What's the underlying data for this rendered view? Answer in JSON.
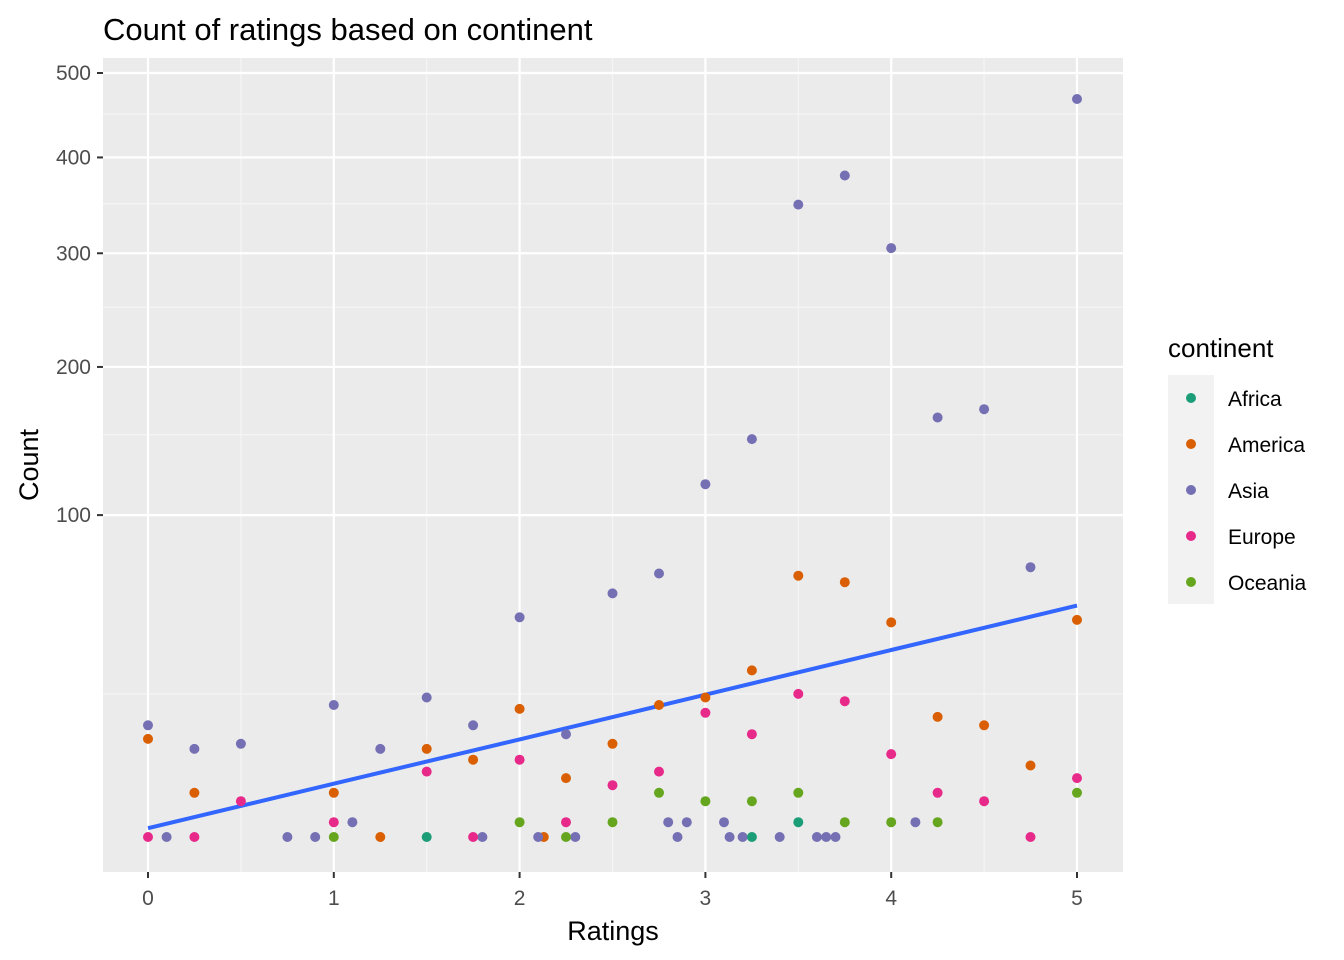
{
  "chart_data": {
    "type": "scatter",
    "title": "Count of ratings based on continent",
    "xlabel": "Ratings",
    "ylabel": "Count",
    "xlim": [
      -0.25,
      5.25
    ],
    "ylim": [
      0,
      530
    ],
    "y_scale": "sqrt",
    "x_ticks": [
      0,
      1,
      2,
      3,
      4,
      5
    ],
    "y_ticks": [
      100,
      200,
      300,
      400,
      500
    ],
    "y_minor_ticks": [
      25,
      150,
      250,
      350,
      450
    ],
    "grid": true,
    "panel_background": "#ebebeb",
    "legend": {
      "title": "continent",
      "position": "right"
    },
    "series": [
      {
        "name": "Africa",
        "color": "#1b9e77",
        "points": [
          [
            1.5,
            1
          ],
          [
            3.25,
            1
          ],
          [
            3.5,
            2
          ]
        ]
      },
      {
        "name": "America",
        "color": "#d95f02",
        "points": [
          [
            0,
            14
          ],
          [
            0.25,
            5
          ],
          [
            1,
            5
          ],
          [
            1.25,
            1
          ],
          [
            1.5,
            12
          ],
          [
            1.75,
            10
          ],
          [
            2,
            21
          ],
          [
            2.13,
            1
          ],
          [
            2.25,
            7
          ],
          [
            2.5,
            13
          ],
          [
            2.75,
            22
          ],
          [
            3,
            24
          ],
          [
            3.25,
            32
          ],
          [
            3.5,
            69
          ],
          [
            3.75,
            66
          ],
          [
            4,
            49
          ],
          [
            4.25,
            19
          ],
          [
            4.5,
            17
          ],
          [
            4.75,
            9
          ],
          [
            5,
            50
          ]
        ]
      },
      {
        "name": "Asia",
        "color": "#7570b3",
        "points": [
          [
            0,
            17
          ],
          [
            0.1,
            1
          ],
          [
            0.25,
            12
          ],
          [
            0.5,
            13
          ],
          [
            0.75,
            1
          ],
          [
            0.9,
            1
          ],
          [
            1,
            22
          ],
          [
            1.1,
            2
          ],
          [
            1.25,
            12
          ],
          [
            1.5,
            24
          ],
          [
            1.75,
            17
          ],
          [
            1.8,
            1
          ],
          [
            2,
            51
          ],
          [
            2.1,
            1
          ],
          [
            2.25,
            15
          ],
          [
            2.3,
            1
          ],
          [
            2.5,
            61
          ],
          [
            2.75,
            70
          ],
          [
            2.8,
            2
          ],
          [
            2.85,
            1
          ],
          [
            2.9,
            2
          ],
          [
            3,
            118
          ],
          [
            3.1,
            2
          ],
          [
            3.13,
            1
          ],
          [
            3.2,
            1
          ],
          [
            3.25,
            147
          ],
          [
            3.4,
            1
          ],
          [
            3.5,
            349
          ],
          [
            3.6,
            1
          ],
          [
            3.65,
            1
          ],
          [
            3.7,
            1
          ],
          [
            3.75,
            380
          ],
          [
            4,
            305
          ],
          [
            4.13,
            2
          ],
          [
            4.25,
            162
          ],
          [
            4.5,
            168
          ],
          [
            4.75,
            73
          ],
          [
            5,
            468
          ]
        ]
      },
      {
        "name": "Europe",
        "color": "#e7298a",
        "points": [
          [
            0,
            1
          ],
          [
            0.25,
            1
          ],
          [
            0.5,
            4
          ],
          [
            1,
            2
          ],
          [
            1.5,
            8
          ],
          [
            1.75,
            1
          ],
          [
            2,
            10
          ],
          [
            2.25,
            2
          ],
          [
            2.5,
            6
          ],
          [
            2.75,
            8
          ],
          [
            3,
            20
          ],
          [
            3.25,
            15
          ],
          [
            3.5,
            25
          ],
          [
            3.75,
            23
          ],
          [
            4,
            11
          ],
          [
            4.25,
            5
          ],
          [
            4.5,
            4
          ],
          [
            4.75,
            1
          ],
          [
            5,
            7
          ]
        ]
      },
      {
        "name": "Oceania",
        "color": "#66a61e",
        "points": [
          [
            1,
            1
          ],
          [
            2,
            2
          ],
          [
            2.25,
            1
          ],
          [
            2.5,
            2
          ],
          [
            2.75,
            5
          ],
          [
            3,
            4
          ],
          [
            3.25,
            4
          ],
          [
            3.5,
            5
          ],
          [
            3.75,
            2
          ],
          [
            4,
            2
          ],
          [
            4.25,
            2
          ],
          [
            5,
            5
          ]
        ]
      }
    ],
    "trend_line": {
      "type": "linear",
      "color": "#3366ff",
      "points": [
        [
          0,
          1.55
        ],
        [
          1,
          6.2
        ],
        [
          2,
          13.9
        ],
        [
          3,
          24.8
        ],
        [
          4,
          38.8
        ],
        [
          5,
          55.8
        ]
      ]
    }
  }
}
